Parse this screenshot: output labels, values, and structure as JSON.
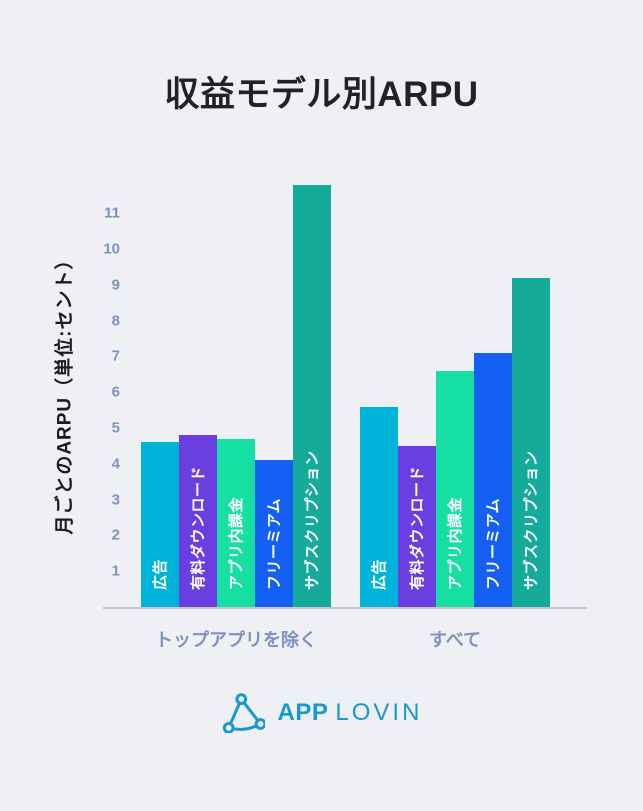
{
  "title": "収益モデル別ARPU",
  "chart_data": {
    "type": "bar",
    "title": "収益モデル別ARPU",
    "xlabel": "",
    "ylabel": "月ごとのARPU（単位:セント）",
    "y_ticks": [
      1,
      2,
      3,
      4,
      5,
      6,
      7,
      8,
      9,
      10,
      11
    ],
    "ylim": [
      0,
      12
    ],
    "grid": false,
    "legend": "none (labels printed vertically inside bars)",
    "series_labels": [
      "広告",
      "有料ダウンロード",
      "アプリ内課金",
      "フリーミアム",
      "サブスクリプション"
    ],
    "series_ids": [
      "ads",
      "paid-downloads",
      "in-app-purchases",
      "freemium",
      "subscription"
    ],
    "series_colors": [
      "#00b4d9",
      "#6a3ee1",
      "#16dfa3",
      "#1560f2",
      "#14ab9b"
    ],
    "groups": [
      {
        "id": "excluding-top-apps",
        "label": "トップアプリを除く",
        "values": [
          4.6,
          4.8,
          4.7,
          4.1,
          11.8
        ]
      },
      {
        "id": "all",
        "label": "すべて",
        "values": [
          5.6,
          4.5,
          6.6,
          7.1,
          9.2
        ]
      }
    ]
  },
  "colors": {
    "background": "#eef0f4",
    "title_text": "#222226",
    "axis_line": "#c7c9cd",
    "tick_text": "#7e92c0",
    "bar_label_text": "#ffffff",
    "logo": "#1898d2"
  },
  "footer": {
    "logo_app": "APP",
    "logo_lovin": "LOVIN"
  }
}
